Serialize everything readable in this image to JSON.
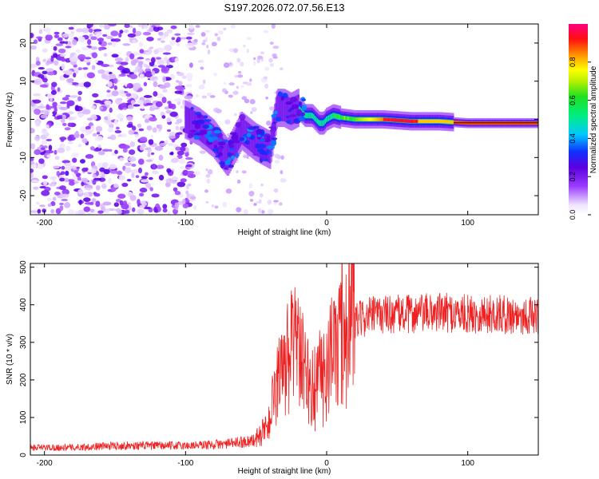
{
  "figure": {
    "title": "S197.2026.072.07.56.E13"
  },
  "chart_data": [
    {
      "type": "heatmap",
      "xlabel": "Height of straight line (km)",
      "ylabel": "Frequency (Hz)",
      "xlim": [
        -210,
        150
      ],
      "ylim": [
        -25,
        25
      ],
      "x_ticks": [
        -200,
        -100,
        0,
        100
      ],
      "y_ticks": [
        -20,
        -10,
        0,
        10,
        20
      ],
      "ridge": {
        "description_points_x": [
          -100,
          -90,
          -80,
          -70,
          -60,
          -50,
          -40,
          -35,
          -30,
          -25,
          -20,
          -15,
          -10,
          -5,
          -2,
          0,
          5,
          10,
          20,
          40,
          60,
          80,
          100,
          150
        ],
        "description_points_freq": [
          0,
          -2,
          -5,
          -10,
          -3,
          -6,
          -8,
          3,
          3,
          2,
          3,
          1,
          1,
          -1,
          -1,
          0,
          1,
          0.5,
          0,
          0,
          -0.5,
          -0.5,
          -1,
          -1
        ]
      },
      "colorbar": {
        "label": "Normalized spectral amplitude",
        "range": [
          0,
          1
        ],
        "ticks": [
          0.0,
          0.2,
          0.4,
          0.6,
          0.8
        ],
        "tick_labels": [
          "0.0",
          "0.2",
          "0.4",
          "0.6",
          "0.8"
        ]
      }
    },
    {
      "type": "line",
      "xlabel": "Height of straight line (km)",
      "ylabel": "SNR (10 * v/v)",
      "xlim": [
        -210,
        150
      ],
      "ylim": [
        0,
        510
      ],
      "x_ticks": [
        -200,
        -100,
        0,
        100
      ],
      "y_ticks": [
        0,
        100,
        200,
        300,
        400,
        500
      ],
      "color": "#ee2222",
      "series": [
        {
          "name": "SNR",
          "x": [
            -210,
            -180,
            -150,
            -120,
            -100,
            -80,
            -70,
            -60,
            -50,
            -45,
            -40,
            -35,
            -30,
            -25,
            -22,
            -20,
            -15,
            -10,
            -5,
            0,
            5,
            10,
            15,
            20,
            30,
            40,
            60,
            80,
            100,
            120,
            150
          ],
          "y": [
            20,
            20,
            25,
            25,
            25,
            28,
            30,
            35,
            40,
            60,
            100,
            160,
            230,
            270,
            280,
            260,
            210,
            170,
            190,
            230,
            270,
            300,
            330,
            355,
            370,
            375,
            375,
            380,
            375,
            375,
            370
          ]
        }
      ]
    }
  ]
}
